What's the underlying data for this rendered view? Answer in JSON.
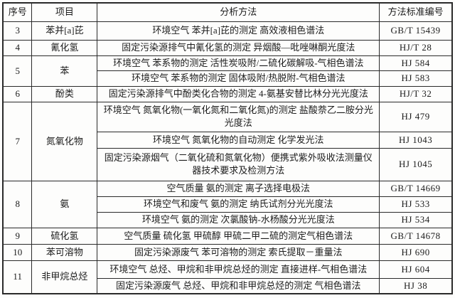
{
  "table": {
    "headers": [
      "序号",
      "项目",
      "分析方法",
      "方法标准编号"
    ],
    "groups": [
      {
        "no": "3",
        "item": "苯并[a]芘",
        "methods": [
          {
            "method": "环境空气 苯并[a]芘的测定 高效液相色谱法",
            "standard": "GB/T 15439"
          }
        ]
      },
      {
        "no": "4",
        "item": "氰化氢",
        "methods": [
          {
            "method": "固定污染源排气中氰化氢的测定 异烟酸—吡唑啉酮光度法",
            "standard": "HJ/T 28"
          }
        ]
      },
      {
        "no": "5",
        "item": "苯",
        "methods": [
          {
            "method": "环境空气 苯系物的测定 活性炭吸附/二硫化碳解吸-气相色谱法",
            "standard": "HJ 584"
          },
          {
            "method": "环境空气 苯系物的测定 固体吸附/热脱附-气相色谱法",
            "standard": "HJ 583"
          }
        ]
      },
      {
        "no": "6",
        "item": "酚类",
        "methods": [
          {
            "method": "固定污染源排气中酚类化合物的测定 4-氨基安替比林分光光度法",
            "standard": "HJ/T 32"
          }
        ]
      },
      {
        "no": "7",
        "item": "氮氧化物",
        "methods": [
          {
            "method": "环境空气 氮氧化物(一氧化氮和二氧化氮)的测定 盐酸萘乙二胺分光光度法",
            "standard": "HJ 479"
          },
          {
            "method": "环境空气 氮氧化物的自动测定 化学发光法",
            "standard": "HJ 1043"
          },
          {
            "method": "固定污染源烟气（二氧化硫和氮氧化物）便携式紫外吸收法测量仪器技术要求及检测方法",
            "standard": "HJ 1045"
          }
        ]
      },
      {
        "no": "8",
        "item": "氨",
        "methods": [
          {
            "method": "空气质量 氨的测定 离子选择电极法",
            "standard": "GB/T 14669"
          },
          {
            "method": "环境空气和废气 氨的测定 纳氏试剂分光光度法",
            "standard": "HJ 533"
          },
          {
            "method": "环境空气 氨的测定 次氯酸钠-水杨酸分光光度法",
            "standard": "HJ 534"
          }
        ]
      },
      {
        "no": "9",
        "item": "硫化氢",
        "methods": [
          {
            "method": "空气质量 硫化氢 甲硫醇 甲硫二甲二硫的测定气相色谱法",
            "standard": "GB/T 14678"
          }
        ]
      },
      {
        "no": "10",
        "item": "苯可溶物",
        "methods": [
          {
            "method": "固定污染源废气 苯可溶物的测定 索氏提取－重量法",
            "standard": "HJ 690"
          }
        ]
      },
      {
        "no": "11",
        "item": "非甲烷总烃",
        "methods": [
          {
            "method": "环境空气 总烃、甲烷和非甲烷总烃的测定 直接进样-气相色谱法",
            "standard": "HJ 604"
          },
          {
            "method": "固定污染源废气 总烃、甲烷和非甲烷总烃的测定 气相色谱法",
            "standard": "HJ 38"
          }
        ]
      }
    ]
  }
}
